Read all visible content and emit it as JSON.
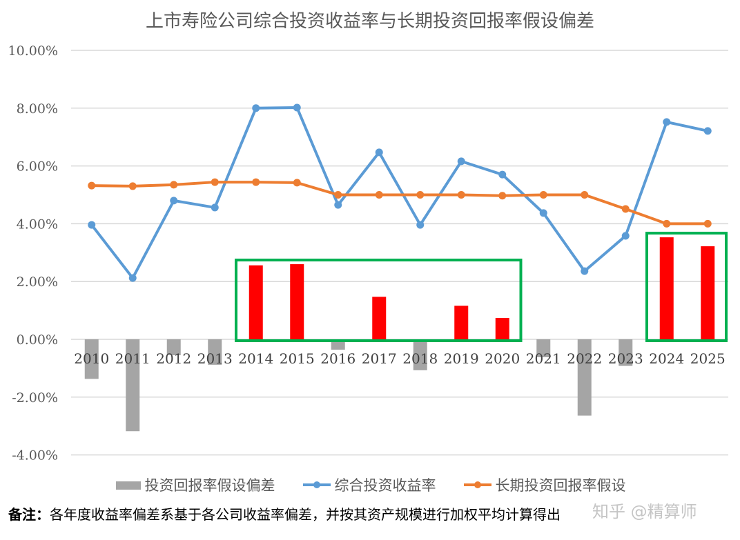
{
  "chart_data": {
    "type": "bar+line",
    "title": "上市寿险公司综合投资收益率与长期投资回报率假设偏差",
    "categories": [
      "2010",
      "2011",
      "2012",
      "2013",
      "2014",
      "2015",
      "2016",
      "2017",
      "2018",
      "2019",
      "2020",
      "2021",
      "2022",
      "2023",
      "2024",
      "2025"
    ],
    "ylim": [
      -4,
      10
    ],
    "yticks": [
      "-4.00%",
      "-2.00%",
      "0.00%",
      "2.00%",
      "4.00%",
      "6.00%",
      "8.00%",
      "10.00%"
    ],
    "grid": true,
    "legend_position": "bottom",
    "series": [
      {
        "name": "投资回报率假设偏差",
        "type": "bar",
        "color": "#A5A5A5",
        "highlight_color": "#FF0000",
        "values": [
          -1.37,
          -3.18,
          -0.55,
          -0.88,
          2.56,
          2.6,
          -0.36,
          1.47,
          -1.07,
          1.16,
          0.74,
          -0.62,
          -2.64,
          -0.92,
          3.53,
          3.22
        ]
      },
      {
        "name": "综合投资收益率",
        "type": "line",
        "color": "#5B9BD5",
        "values": [
          3.96,
          2.12,
          4.8,
          4.56,
          8.0,
          8.02,
          4.65,
          6.47,
          3.96,
          6.16,
          5.7,
          4.37,
          2.36,
          3.58,
          7.52,
          7.21
        ]
      },
      {
        "name": "长期投资回报率假设",
        "type": "line",
        "color": "#ED7D31",
        "values": [
          5.32,
          5.3,
          5.35,
          5.44,
          5.44,
          5.42,
          5.0,
          5.0,
          5.0,
          5.0,
          4.97,
          5.0,
          5.0,
          4.51,
          4.0,
          4.0
        ]
      }
    ],
    "highlight_boxes": [
      [
        "2014",
        "2020"
      ],
      [
        "2024",
        "2025"
      ]
    ],
    "highlight_box_color": "#00B050"
  },
  "note": {
    "label": "备注：",
    "text": "各年度收益率偏差系基于各公司收益率偏差，并按其资产规模进行加权平均计算得出"
  },
  "watermark": "知乎 @精算师"
}
